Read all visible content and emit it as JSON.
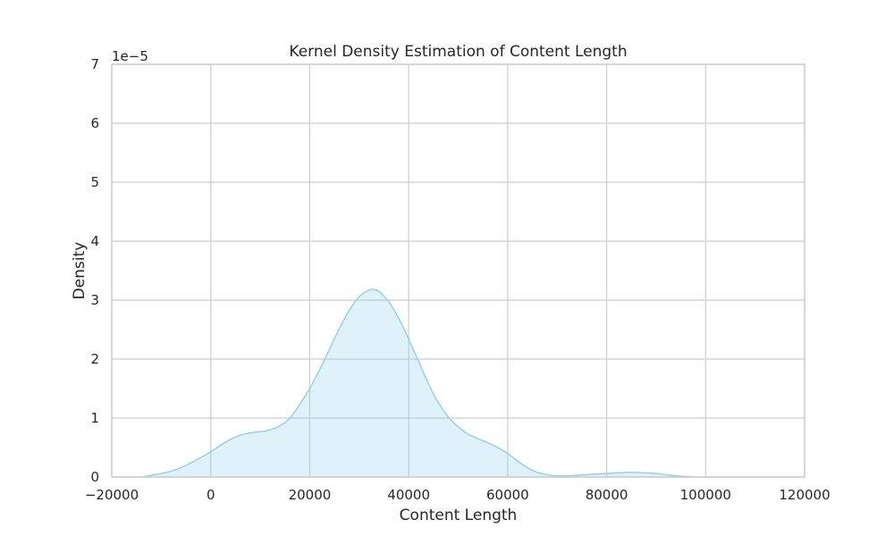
{
  "chart_data": {
    "type": "area",
    "title": "Kernel Density Estimation of Content Length",
    "xlabel": "Content Length",
    "ylabel": "Density",
    "xlim": [
      -20000,
      120000
    ],
    "ylim": [
      0,
      7
    ],
    "y_offset_label": "1e−5",
    "xticks": [
      -20000,
      0,
      20000,
      40000,
      60000,
      80000,
      100000,
      120000
    ],
    "xtick_labels": [
      "−20000",
      "0",
      "20000",
      "40000",
      "60000",
      "80000",
      "100000",
      "120000"
    ],
    "yticks": [
      0,
      1,
      2,
      3,
      4,
      5,
      6,
      7
    ],
    "ytick_labels": [
      "0",
      "1",
      "2",
      "3",
      "4",
      "5",
      "6",
      "7"
    ],
    "grid": true,
    "series": [
      {
        "x": [
          -14000,
          -12000,
          -10000,
          -8000,
          -6000,
          -4000,
          -2000,
          0,
          2000,
          4000,
          6000,
          8000,
          10000,
          12000,
          14000,
          16000,
          18000,
          20000,
          22000,
          24000,
          26000,
          28000,
          30000,
          32000,
          33000,
          34000,
          36000,
          38000,
          40000,
          42000,
          44000,
          46000,
          48000,
          50000,
          52000,
          54000,
          56000,
          58000,
          60000,
          62000,
          64000,
          66000,
          68000,
          70000,
          72000,
          74000,
          76000,
          78000,
          80000,
          82000,
          84000,
          86000,
          88000,
          90000,
          92000,
          94000,
          96000,
          98000
        ],
        "y": [
          0.0,
          0.03,
          0.06,
          0.1,
          0.16,
          0.24,
          0.33,
          0.43,
          0.54,
          0.64,
          0.71,
          0.75,
          0.77,
          0.8,
          0.87,
          1.0,
          1.23,
          1.5,
          1.82,
          2.17,
          2.52,
          2.83,
          3.06,
          3.17,
          3.18,
          3.15,
          2.97,
          2.69,
          2.34,
          1.96,
          1.58,
          1.26,
          1.02,
          0.85,
          0.73,
          0.65,
          0.58,
          0.5,
          0.4,
          0.27,
          0.16,
          0.08,
          0.04,
          0.02,
          0.02,
          0.03,
          0.04,
          0.05,
          0.06,
          0.07,
          0.08,
          0.08,
          0.07,
          0.06,
          0.04,
          0.02,
          0.01,
          0.0
        ]
      }
    ],
    "colors": {
      "line": "#87ceeb",
      "fill": "#87ceeb",
      "grid": "#cccccc",
      "spine": "#cccccc",
      "text": "#262626"
    }
  }
}
